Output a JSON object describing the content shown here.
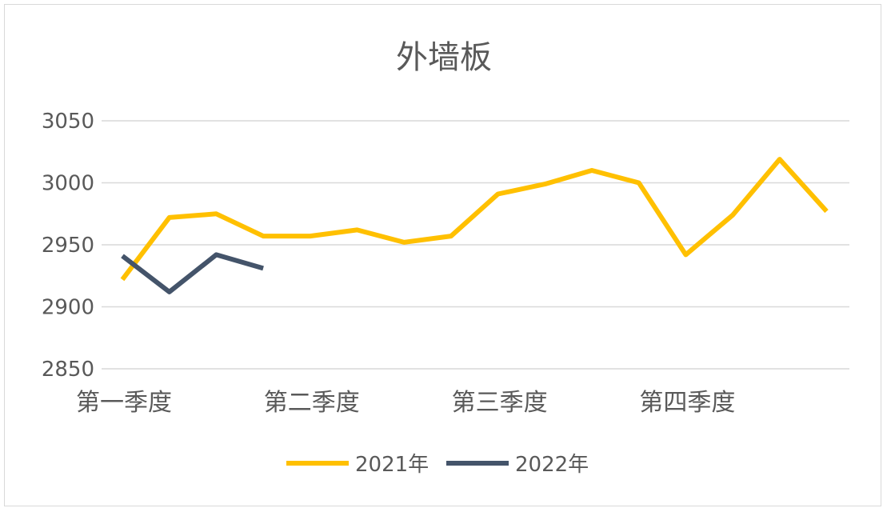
{
  "chart_data": {
    "type": "line",
    "title": "外墙板",
    "categories": [
      "第一季度",
      "第二季度",
      "第三季度",
      "第四季度"
    ],
    "x": [
      1,
      2,
      3,
      4,
      5,
      6,
      7,
      8,
      9,
      10,
      11,
      12,
      13,
      14,
      15,
      16
    ],
    "ylim": [
      2850,
      3050
    ],
    "yticks": [
      2850,
      2900,
      2950,
      3000,
      3050
    ],
    "grid": true,
    "legend_position": "bottom",
    "series": [
      {
        "name": "2021年",
        "color": "#FFC000",
        "values": [
          2922,
          2972,
          2975,
          2957,
          2957,
          2962,
          2952,
          2957,
          2991,
          2999,
          3010,
          3000,
          2942,
          2974,
          3019,
          2977
        ]
      },
      {
        "name": "2022年",
        "color": "#44546A",
        "values": [
          2941,
          2912,
          2942,
          2931
        ]
      }
    ]
  }
}
